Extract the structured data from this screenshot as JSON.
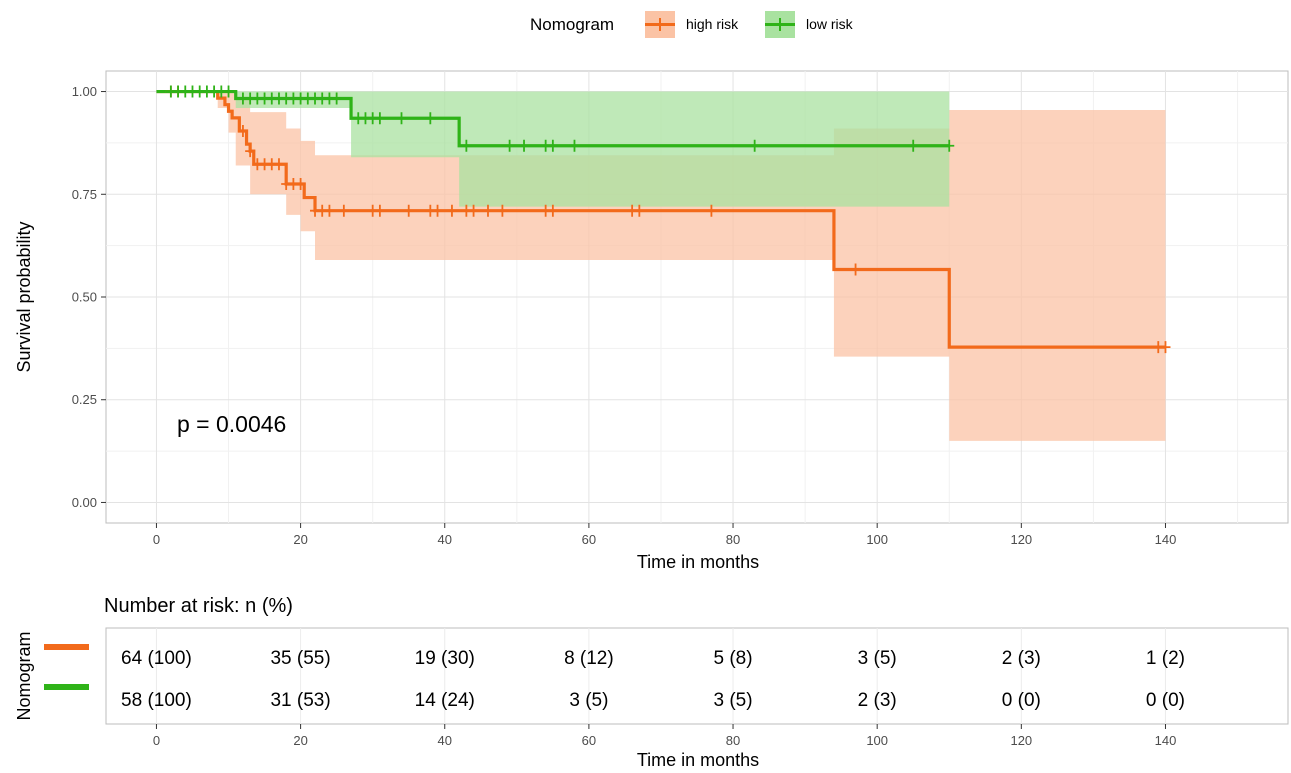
{
  "chart_data": [
    {
      "type": "line",
      "subtype": "kaplan-meier",
      "title": "",
      "xlabel": "Time in months",
      "ylabel": "Survival probability",
      "xlim": [
        -7,
        157
      ],
      "ylim": [
        -0.05,
        1.05
      ],
      "x_ticks": [
        "0",
        "20",
        "40",
        "60",
        "80",
        "100",
        "120",
        "140"
      ],
      "y_ticks": [
        "0.00",
        "0.25",
        "0.50",
        "0.75",
        "1.00"
      ],
      "grid": true,
      "legend": {
        "title": "Nomogram",
        "position": "top",
        "entries": [
          "high risk",
          "low risk"
        ]
      },
      "annotation": "p = 0.0046",
      "colors": {
        "high_risk": "#f26a1b",
        "low_risk": "#2fb318",
        "high_risk_band": "#fbc3a5",
        "low_risk_band": "#a9e2a0"
      },
      "series": [
        {
          "name": "high risk",
          "steps": [
            [
              0,
              1.0
            ],
            [
              8.5,
              0.984
            ],
            [
              9.5,
              0.968
            ],
            [
              10.0,
              0.952
            ],
            [
              10.5,
              0.936
            ],
            [
              11.5,
              0.904
            ],
            [
              12.5,
              0.872
            ],
            [
              13.0,
              0.855
            ],
            [
              13.5,
              0.823
            ],
            [
              18.0,
              0.775
            ],
            [
              20.5,
              0.742
            ],
            [
              22.0,
              0.71
            ],
            [
              94.0,
              0.567
            ],
            [
              110.0,
              0.378
            ]
          ],
          "ci_steps": [
            [
              0,
              1.0,
              1.0
            ],
            [
              8.5,
              0.96,
              1.0
            ],
            [
              10.0,
              0.9,
              1.0
            ],
            [
              11.0,
              0.82,
              0.98
            ],
            [
              13.0,
              0.75,
              0.95
            ],
            [
              18.0,
              0.7,
              0.91
            ],
            [
              20.0,
              0.66,
              0.88
            ],
            [
              22.0,
              0.59,
              0.845
            ],
            [
              42.0,
              0.59,
              0.845
            ],
            [
              94.0,
              0.355,
              0.91
            ],
            [
              110.0,
              0.15,
              0.955
            ]
          ],
          "end": 140,
          "censor": [
            2,
            3,
            12,
            13,
            14,
            15,
            16,
            17,
            18,
            19,
            20,
            22,
            23,
            24,
            26,
            30,
            31,
            35,
            38,
            39,
            41,
            43,
            44,
            46,
            48,
            54,
            55,
            66,
            67,
            77,
            97,
            139,
            140
          ]
        },
        {
          "name": "low risk",
          "steps": [
            [
              0,
              1.0
            ],
            [
              11.0,
              0.983
            ],
            [
              27.0,
              0.935
            ],
            [
              42.0,
              0.868
            ]
          ],
          "ci_steps": [
            [
              0,
              1.0,
              1.0
            ],
            [
              11.0,
              0.96,
              1.0
            ],
            [
              27.0,
              0.84,
              1.0
            ],
            [
              42.0,
              0.72,
              1.0
            ]
          ],
          "end": 110,
          "censor": [
            2,
            3,
            4,
            5,
            6,
            7,
            8,
            9,
            10,
            12,
            13,
            14,
            15,
            16,
            17,
            18,
            19,
            20,
            21,
            22,
            23,
            24,
            25,
            28,
            29,
            30,
            31,
            34,
            38,
            43,
            49,
            51,
            54,
            55,
            58,
            83,
            105,
            110
          ]
        }
      ]
    },
    {
      "type": "table",
      "title": "Number at risk: n (%)",
      "xlabel": "Time in months",
      "ylabel": "Nomogram",
      "x_ticks": [
        "0",
        "20",
        "40",
        "60",
        "80",
        "100",
        "120",
        "140"
      ],
      "rows": [
        {
          "name": "high risk",
          "values": [
            "64 (100)",
            "35 (55)",
            "19 (30)",
            "8 (12)",
            "5 (8)",
            "3 (5)",
            "2 (3)",
            "1 (2)"
          ]
        },
        {
          "name": "low risk",
          "values": [
            "58 (100)",
            "31 (53)",
            "14 (24)",
            "3 (5)",
            "3 (5)",
            "2 (3)",
            "0 (0)",
            "0 (0)"
          ]
        }
      ]
    }
  ]
}
